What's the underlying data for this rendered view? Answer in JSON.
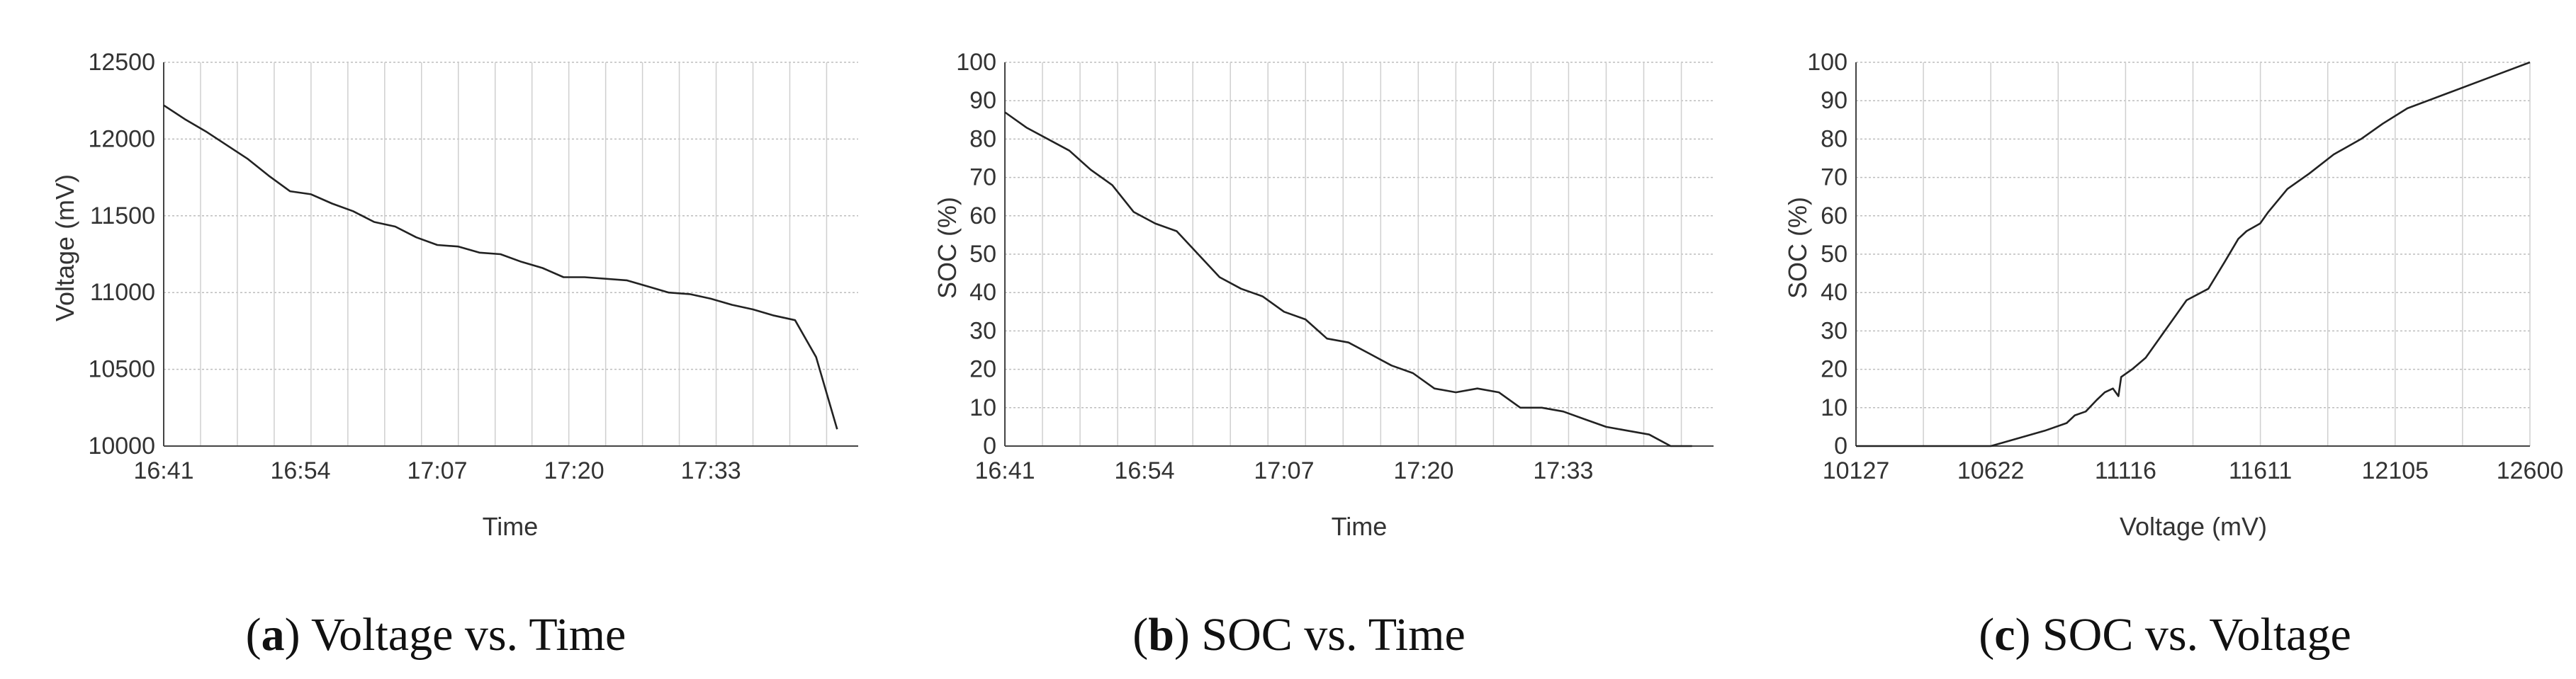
{
  "chart_data": [
    {
      "type": "line",
      "xlabel": "Time",
      "ylabel": "Voltage (mV)",
      "x_ticks": [
        "16:41",
        "16:54",
        "17:07",
        "17:20",
        "17:33"
      ],
      "y_ticks": [
        "10000",
        "10500",
        "11000",
        "11500",
        "12000",
        "12500"
      ],
      "xlim": [
        0,
        66
      ],
      "ylim": [
        10000,
        12500
      ],
      "grid": true,
      "caption": {
        "label": "a",
        "text": "Voltage vs. Time"
      },
      "series": [
        {
          "values": [
            [
              0,
              12220
            ],
            [
              2,
              12130
            ],
            [
              4,
              12050
            ],
            [
              6,
              11960
            ],
            [
              8,
              11870
            ],
            [
              10,
              11760
            ],
            [
              12,
              11660
            ],
            [
              14,
              11640
            ],
            [
              16,
              11580
            ],
            [
              18,
              11530
            ],
            [
              20,
              11460
            ],
            [
              22,
              11430
            ],
            [
              24,
              11360
            ],
            [
              26,
              11310
            ],
            [
              28,
              11300
            ],
            [
              30,
              11260
            ],
            [
              32,
              11250
            ],
            [
              34,
              11200
            ],
            [
              36,
              11160
            ],
            [
              38,
              11100
            ],
            [
              40,
              11100
            ],
            [
              44,
              11080
            ],
            [
              46,
              11040
            ],
            [
              48,
              11000
            ],
            [
              50,
              10990
            ],
            [
              52,
              10960
            ],
            [
              54,
              10920
            ],
            [
              56,
              10890
            ],
            [
              58,
              10850
            ],
            [
              60,
              10820
            ],
            [
              62,
              10580
            ],
            [
              64,
              10110
            ]
          ]
        }
      ]
    },
    {
      "type": "line",
      "xlabel": "Time",
      "ylabel": "SOC (%)",
      "x_ticks": [
        "16:41",
        "16:54",
        "17:07",
        "17:20",
        "17:33"
      ],
      "y_ticks": [
        "0",
        "10",
        "20",
        "30",
        "40",
        "50",
        "60",
        "70",
        "80",
        "90",
        "100"
      ],
      "xlim": [
        0,
        66
      ],
      "ylim": [
        0,
        100
      ],
      "grid": true,
      "caption": {
        "label": "b",
        "text": "SOC vs. Time"
      },
      "series": [
        {
          "values": [
            [
              0,
              87
            ],
            [
              2,
              83
            ],
            [
              6,
              77
            ],
            [
              8,
              72
            ],
            [
              10,
              68
            ],
            [
              12,
              61
            ],
            [
              14,
              58
            ],
            [
              16,
              56
            ],
            [
              18,
              50
            ],
            [
              20,
              44
            ],
            [
              22,
              41
            ],
            [
              24,
              39
            ],
            [
              26,
              35
            ],
            [
              28,
              33
            ],
            [
              30,
              28
            ],
            [
              32,
              27
            ],
            [
              34,
              24
            ],
            [
              36,
              21
            ],
            [
              38,
              19
            ],
            [
              40,
              15
            ],
            [
              42,
              14
            ],
            [
              44,
              15
            ],
            [
              46,
              14
            ],
            [
              48,
              10
            ],
            [
              50,
              10
            ],
            [
              52,
              9
            ],
            [
              54,
              7
            ],
            [
              56,
              5
            ],
            [
              58,
              4
            ],
            [
              60,
              3
            ],
            [
              62,
              0
            ],
            [
              64,
              0
            ]
          ]
        }
      ]
    },
    {
      "type": "line",
      "xlabel": "Voltage (mV)",
      "ylabel": "SOC (%)",
      "x_ticks": [
        "10127",
        "10622",
        "11116",
        "11611",
        "12105",
        "12600"
      ],
      "y_ticks": [
        "0",
        "10",
        "20",
        "30",
        "40",
        "50",
        "60",
        "70",
        "80",
        "90",
        "100"
      ],
      "xlim": [
        10127,
        12600
      ],
      "ylim": [
        0,
        100
      ],
      "grid": true,
      "caption": {
        "label": "c",
        "text": "SOC vs. Voltage"
      },
      "series": [
        {
          "values": [
            [
              10127,
              0
            ],
            [
              10622,
              0
            ],
            [
              10720,
              2
            ],
            [
              10820,
              4
            ],
            [
              10900,
              6
            ],
            [
              10930,
              8
            ],
            [
              10970,
              9
            ],
            [
              11010,
              12
            ],
            [
              11040,
              14
            ],
            [
              11070,
              15
            ],
            [
              11090,
              13
            ],
            [
              11100,
              18
            ],
            [
              11140,
              20
            ],
            [
              11190,
              23
            ],
            [
              11240,
              28
            ],
            [
              11300,
              34
            ],
            [
              11340,
              38
            ],
            [
              11420,
              41
            ],
            [
              11480,
              48
            ],
            [
              11530,
              54
            ],
            [
              11560,
              56
            ],
            [
              11610,
              58
            ],
            [
              11640,
              61
            ],
            [
              11710,
              67
            ],
            [
              11790,
              71
            ],
            [
              11880,
              76
            ],
            [
              11980,
              80
            ],
            [
              12060,
              84
            ],
            [
              12150,
              88
            ],
            [
              12300,
              92
            ],
            [
              12450,
              96
            ],
            [
              12600,
              100
            ]
          ]
        }
      ]
    }
  ]
}
